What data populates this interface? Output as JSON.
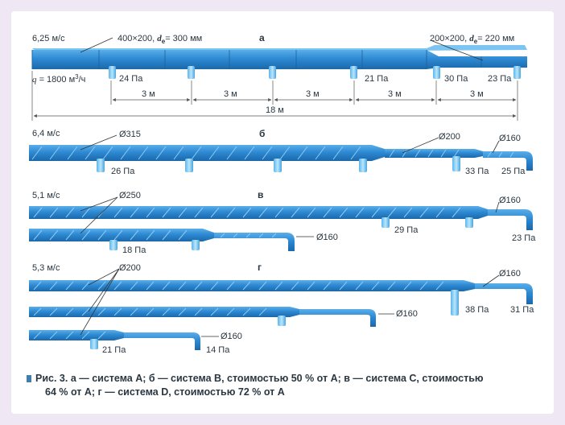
{
  "colors": {
    "duct": "#2d89d2",
    "duct_light": "#6bb8ee",
    "duct_dark": "#1f6fb0",
    "outlet": "#8fd1f7",
    "text": "#2a3640",
    "dim_line": "#555555"
  },
  "a": {
    "label": "а",
    "velocity": "6,25 м/с",
    "section_main": "400×200,",
    "section_main_de": "= 300 мм",
    "section_end": "200×200,",
    "section_end_de": "= 220 мм",
    "de_symbol": "d",
    "de_sub": "e",
    "flow_q": "q",
    "flow_value": "= 1800 м",
    "flow_unit_sup": "3",
    "flow_unit_tail": "/ч",
    "pressures": [
      "24 Па",
      "21 Па",
      "30 Па",
      "23 Па"
    ],
    "spacing": [
      "3 м",
      "3 м",
      "3 м",
      "3 м",
      "3 м"
    ],
    "total": "18 м"
  },
  "b": {
    "label": "б",
    "velocity": "6,4 м/с",
    "diameters": [
      "Ø315",
      "Ø200",
      "Ø160"
    ],
    "pressures": [
      "26 Па",
      "33 Па",
      "25 Па"
    ]
  },
  "c": {
    "label": "в",
    "velocity": "5,1 м/с",
    "diameters": [
      "Ø250",
      "Ø160",
      "Ø160"
    ],
    "pressures": [
      "29 Па",
      "23 Па",
      "18 Па"
    ]
  },
  "d": {
    "label": "г",
    "velocity": "5,3 м/с",
    "diameters": [
      "Ø200",
      "Ø160",
      "Ø160",
      "Ø160"
    ],
    "pressures": [
      "38 Па",
      "31 Па",
      "21 Па",
      "14 Па"
    ]
  },
  "caption": {
    "line1": "Рис. 3. а — система А; б — система В, стоимостью 50 % от А; в — система С, стоимостью",
    "line2": "64 % от А; г — система D, стоимостью 72 % от А"
  }
}
